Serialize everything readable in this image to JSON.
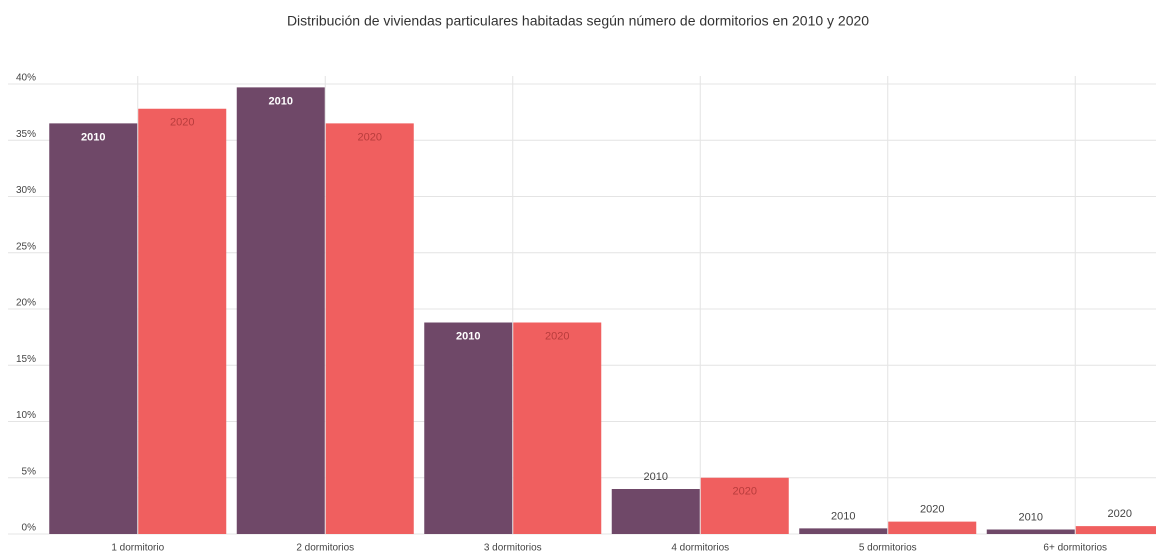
{
  "chart_data": {
    "type": "bar",
    "title": "Distribución de viviendas particulares habitadas según número de dormitorios en 2010 y 2020",
    "categories": [
      "1 dormitorio",
      "2 dormitorios",
      "3 dormitorios",
      "4 dormitorios",
      "5 dormitorios",
      "6+ dormitorios"
    ],
    "series": [
      {
        "name": "2010",
        "color": "#6f4868",
        "values": [
          36.5,
          39.7,
          18.8,
          4.0,
          0.5,
          0.4
        ]
      },
      {
        "name": "2020",
        "color": "#f05f5f",
        "values": [
          37.8,
          36.5,
          18.8,
          5.0,
          1.1,
          0.7
        ]
      }
    ],
    "ylim": [
      0,
      40
    ],
    "yticks": [
      {
        "value": 0,
        "label": "0%"
      },
      {
        "value": 5,
        "label": "5%"
      },
      {
        "value": 10,
        "label": "10%"
      },
      {
        "value": 15,
        "label": "15%"
      },
      {
        "value": 20,
        "label": "20%"
      },
      {
        "value": 25,
        "label": "25%"
      },
      {
        "value": 30,
        "label": "30%"
      },
      {
        "value": 35,
        "label": "35%"
      },
      {
        "value": 40,
        "label": "40%"
      }
    ],
    "grid": true
  }
}
